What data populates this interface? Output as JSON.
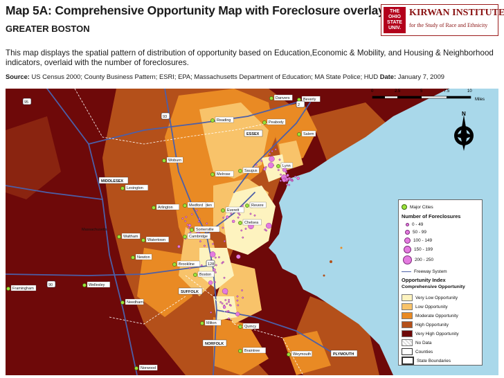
{
  "header": {
    "title": "Map 5A: Comprehensive Opportunity Map with Foreclosure  overlay",
    "subtitle": "GREATER BOSTON",
    "logo_seal": "THE OHIO STATE UNIVERSITY",
    "logo_name": "KIRWAN INSTITUTE",
    "logo_sub": "for the Study of Race and Ethnicity",
    "description": "This map displays the spatial pattern of distribution of opportunity based on Education,Economic & Mobility, and Housing & Neighborhood indicators, overlaid with the number of foreclosures.",
    "source_label": "Source:",
    "source_text": " US Census 2000; County Business Pattern; ESRI; EPA; Massachusetts Department of Education; MA State Police; HUD ",
    "date_label": "Date:",
    "date_text": " January 7, 2009"
  },
  "scale": {
    "ticks": [
      "0",
      "2.5",
      "5",
      "7.5",
      "10"
    ],
    "unit": "Miles"
  },
  "map_labels": {
    "cities": [
      "Danvers",
      "Beverly",
      "Peabody",
      "Salem",
      "Lynn",
      "Saugus",
      "Reading",
      "Melrose",
      "Malden",
      "Revere",
      "Everett",
      "Chelsea",
      "Medford",
      "Arlington",
      "Lexington",
      "Somerville",
      "Cambridge",
      "Waltham",
      "Watertown",
      "Newton",
      "Brookline",
      "Boston",
      "Wellesley",
      "Framingham",
      "Needham",
      "Milton",
      "Quincy",
      "Braintree",
      "Weymouth",
      "Norwood",
      "Woburn"
    ],
    "counties": [
      "ESSEX",
      "MIDDLESEX",
      "SUFFOLK",
      "NORFOLK",
      "PLYMOUTH"
    ],
    "state": "Massachusetts",
    "highways": [
      "95",
      "93",
      "90",
      "128",
      "2"
    ]
  },
  "legend": {
    "major_cities": "Major Cities",
    "foreclosure_title": "Number of Foreclosures",
    "foreclosure_classes": [
      "0 - 49",
      "50 - 99",
      "100 - 149",
      "150 - 199",
      "200 - 250"
    ],
    "freeway": "Freeway System",
    "opportunity_title": "Opportunity Index",
    "opportunity_subtitle": "Comprehensive Opportunity",
    "opportunity_classes": [
      {
        "label": "Very Low Opportunity",
        "color": "#fdf3bf"
      },
      {
        "label": "Low Opportunity",
        "color": "#f8c36a"
      },
      {
        "label": "Moderate Opportunity",
        "color": "#e98a24"
      },
      {
        "label": "High Opportunity",
        "color": "#b4501a"
      },
      {
        "label": "Very High Opportunity",
        "color": "#6e0909"
      }
    ],
    "no_data": "No Data",
    "counties": "Counties",
    "state_boundaries": "State Boundaries"
  },
  "colors": {
    "water": "#a9d8ea",
    "city_marker": "#9be23a",
    "foreclosure": "#e47be0",
    "freeway": "#4c5fa8"
  }
}
